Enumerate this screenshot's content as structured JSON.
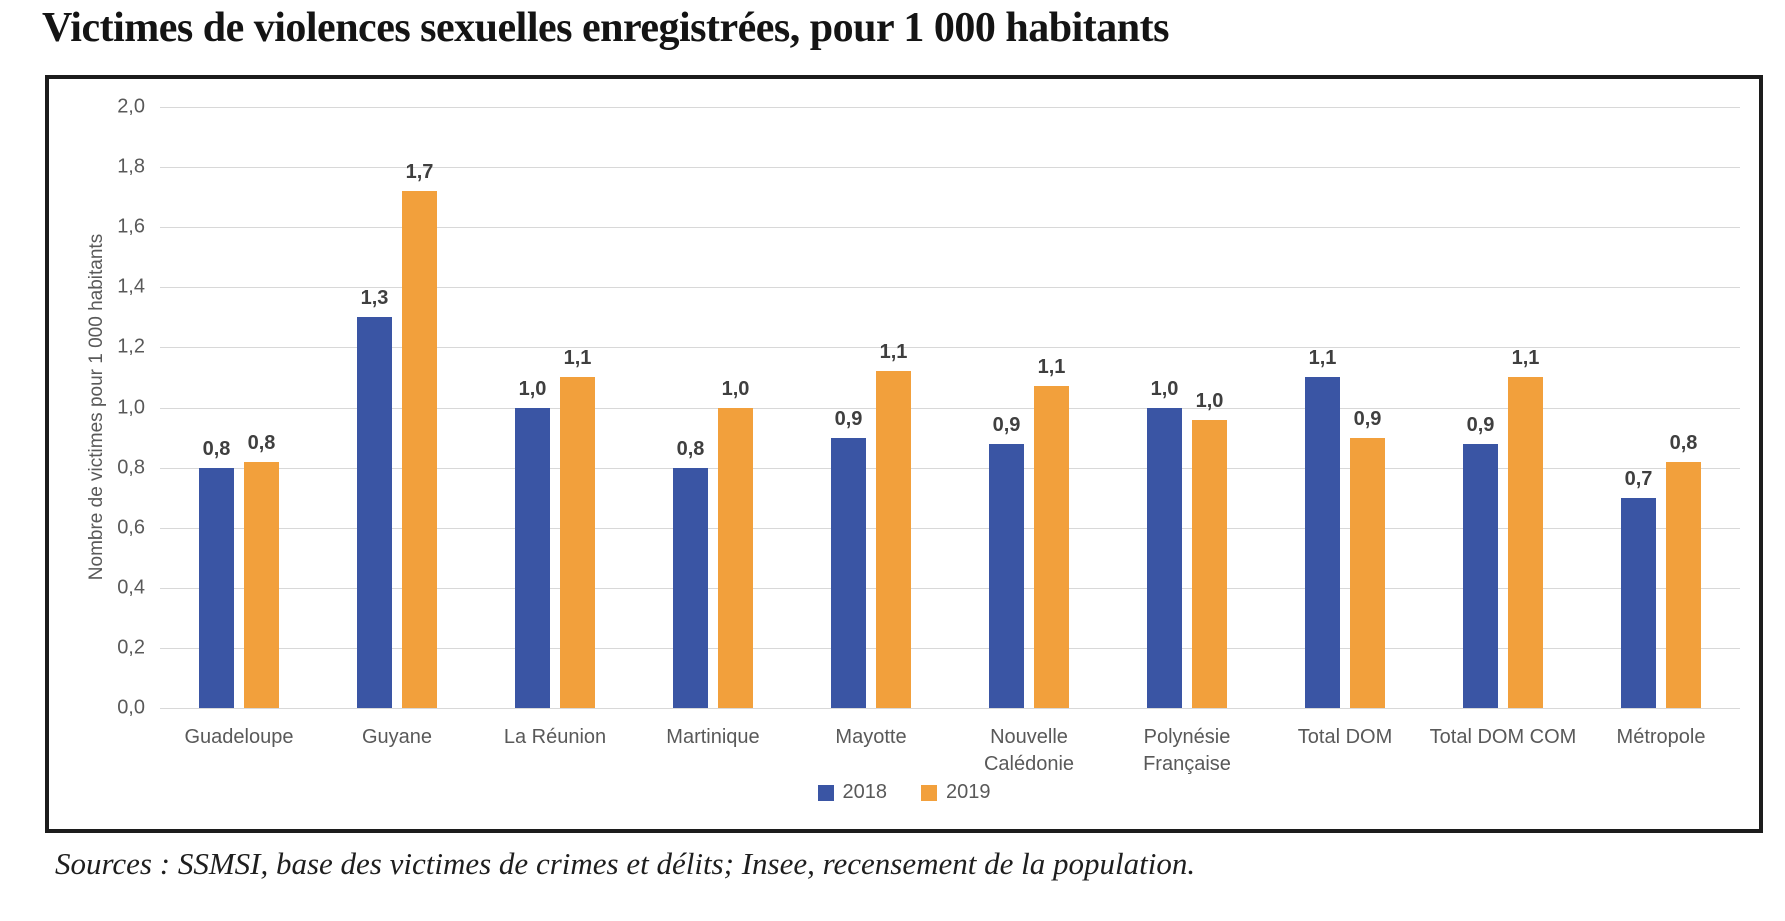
{
  "page": {
    "title": "Victimes de violences sexuelles enregistrées, pour 1 000 habitants",
    "source_note": "Sources : SSMSI, base des victimes de crimes et délits; Insee, recensement de la population."
  },
  "chart_data": {
    "type": "bar",
    "title": "Victimes de violences sexuelles enregistrées, pour 1 000 habitants",
    "xlabel": "",
    "ylabel": "Nombre de victimes pour 1 000 habitants",
    "ylim": [
      0.0,
      2.0
    ],
    "ytick_step": 0.2,
    "ytick_labels": [
      "0,0",
      "0,2",
      "0,4",
      "0,6",
      "0,8",
      "1,0",
      "1,2",
      "1,4",
      "1,6",
      "1,8",
      "2,0"
    ],
    "grid": true,
    "legend_position": "bottom-center",
    "categories": [
      "Guadeloupe",
      "Guyane",
      "La Réunion",
      "Martinique",
      "Mayotte",
      "Nouvelle Calédonie",
      "Polynésie Française",
      "Total DOM",
      "Total DOM COM",
      "Métropole"
    ],
    "category_lines": [
      [
        "Guadeloupe"
      ],
      [
        "Guyane"
      ],
      [
        "La Réunion"
      ],
      [
        "Martinique"
      ],
      [
        "Mayotte"
      ],
      [
        "Nouvelle",
        "Calédonie"
      ],
      [
        "Polynésie",
        "Française"
      ],
      [
        "Total DOM"
      ],
      [
        "Total DOM COM"
      ],
      [
        "Métropole"
      ]
    ],
    "series": [
      {
        "name": "2018",
        "color": "#3A55A4",
        "values": [
          0.8,
          1.3,
          1.0,
          0.8,
          0.9,
          0.9,
          1.0,
          1.1,
          0.9,
          0.7
        ],
        "labels": [
          "0,8",
          "1,3",
          "1,0",
          "0,8",
          "0,9",
          "0,9",
          "1,0",
          "1,1",
          "0,9",
          "0,7"
        ],
        "bar_heights_visual": [
          0.8,
          1.3,
          1.0,
          0.8,
          0.9,
          0.88,
          1.0,
          1.1,
          0.88,
          0.7
        ]
      },
      {
        "name": "2019",
        "color": "#F2A03C",
        "values": [
          0.8,
          1.7,
          1.1,
          1.0,
          1.1,
          1.1,
          1.0,
          0.9,
          1.1,
          0.8
        ],
        "labels": [
          "0,8",
          "1,7",
          "1,1",
          "1,0",
          "1,1",
          "1,1",
          "1,0",
          "0,9",
          "1,1",
          "0,8"
        ],
        "bar_heights_visual": [
          0.82,
          1.72,
          1.1,
          1.0,
          1.12,
          1.07,
          0.96,
          0.9,
          1.1,
          0.82
        ]
      }
    ]
  }
}
